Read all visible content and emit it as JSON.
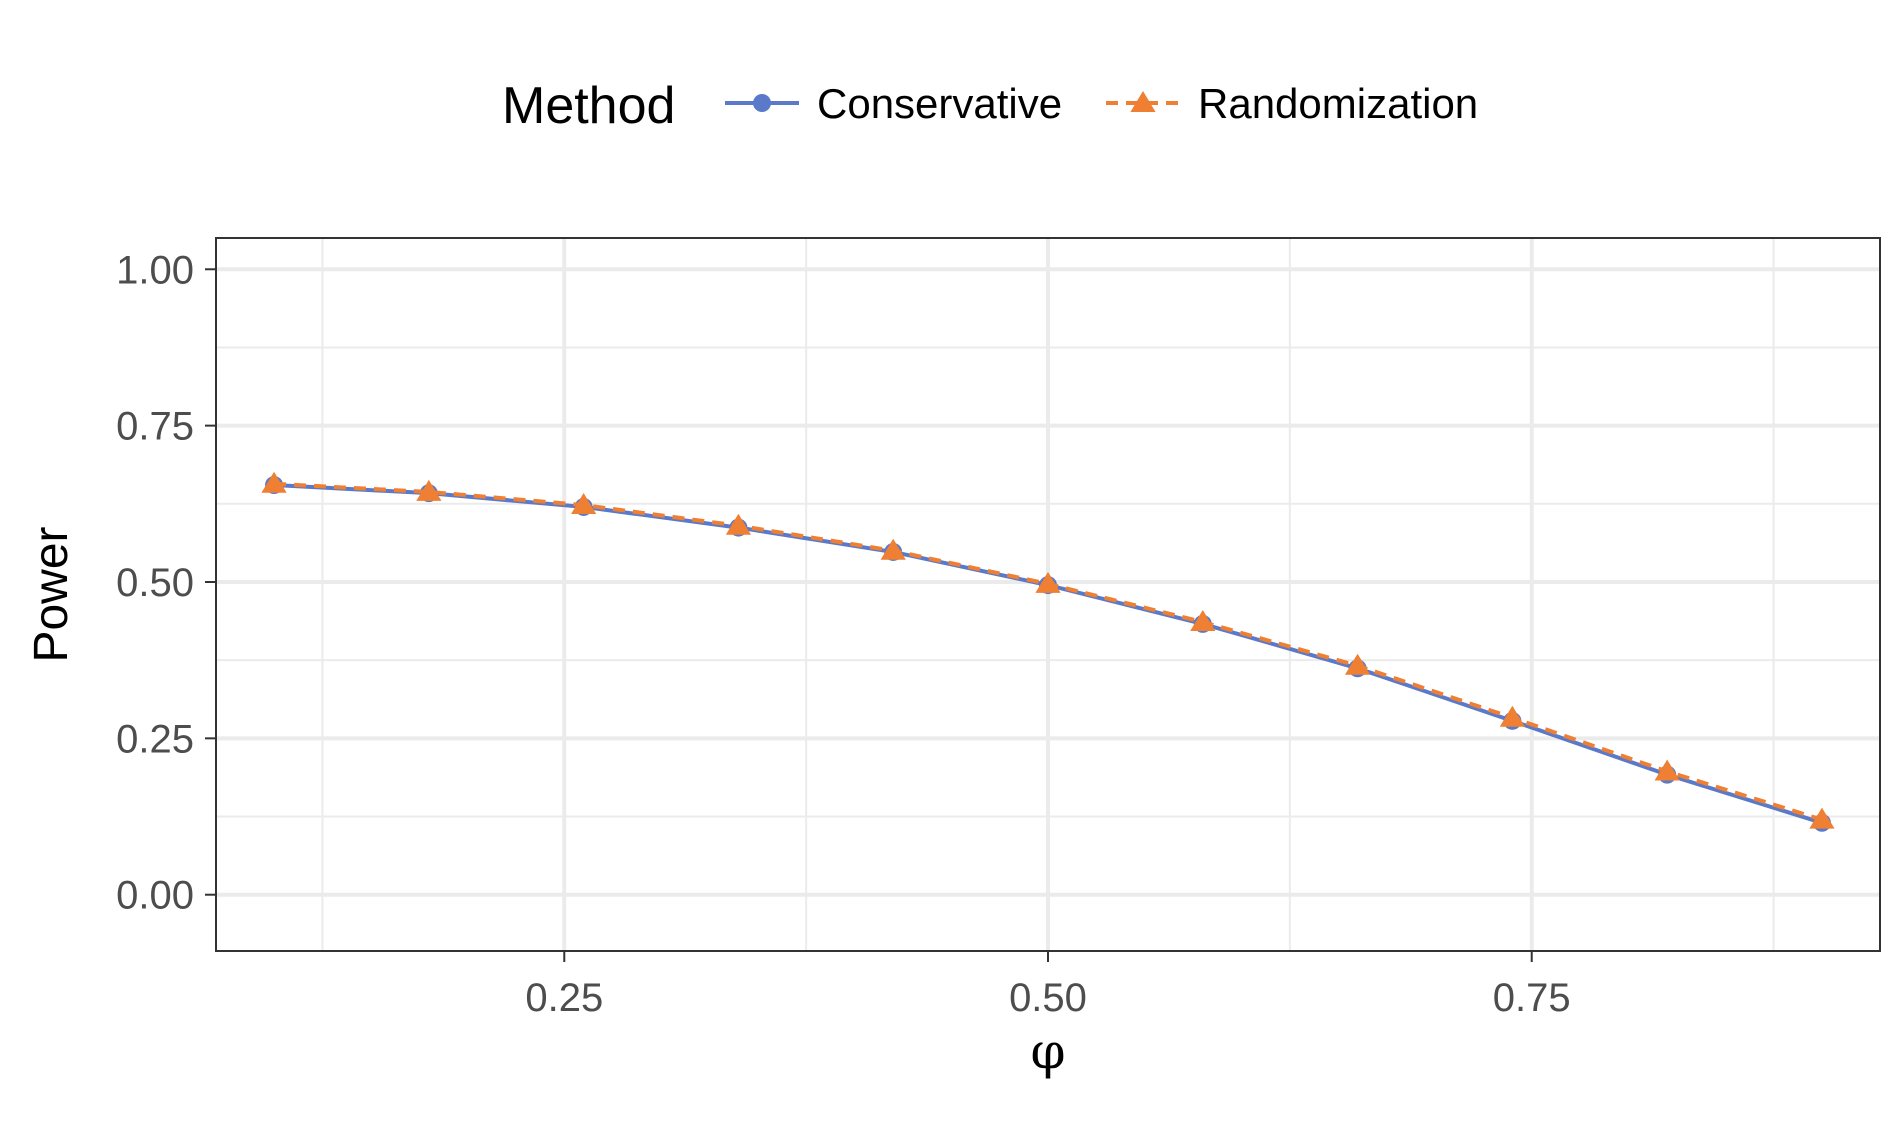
{
  "chart_data": {
    "type": "line",
    "xlabel": "φ",
    "ylabel": "Power",
    "xlim": [
      0.07,
      0.93
    ],
    "ylim": [
      -0.09,
      1.05
    ],
    "x_ticks": [
      {
        "value": 0.25,
        "label": "0.25"
      },
      {
        "value": 0.5,
        "label": "0.50"
      },
      {
        "value": 0.75,
        "label": "0.75"
      }
    ],
    "y_ticks": [
      {
        "value": 0.0,
        "label": "0.00"
      },
      {
        "value": 0.25,
        "label": "0.25"
      },
      {
        "value": 0.5,
        "label": "0.50"
      },
      {
        "value": 0.75,
        "label": "0.75"
      },
      {
        "value": 1.0,
        "label": "1.00"
      }
    ],
    "x_minor_ticks": [
      0.125,
      0.375,
      0.625,
      0.875
    ],
    "y_minor_ticks": [
      0.125,
      0.375,
      0.625,
      0.875
    ],
    "grid": true,
    "legend": {
      "title": "Method",
      "position": "top"
    },
    "x": [
      0.1,
      0.18,
      0.26,
      0.34,
      0.42,
      0.5,
      0.58,
      0.66,
      0.74,
      0.82,
      0.9
    ],
    "series": [
      {
        "name": "Conservative",
        "color": "#5a7ac9",
        "marker": "circle",
        "linestyle": "solid",
        "values": [
          0.655,
          0.642,
          0.62,
          0.587,
          0.548,
          0.495,
          0.433,
          0.362,
          0.278,
          0.192,
          0.115
        ]
      },
      {
        "name": "Randomization",
        "color": "#ee7f33",
        "marker": "triangle",
        "linestyle": "dashed",
        "values": [
          0.657,
          0.644,
          0.623,
          0.59,
          0.55,
          0.497,
          0.436,
          0.366,
          0.283,
          0.197,
          0.12
        ]
      }
    ]
  }
}
